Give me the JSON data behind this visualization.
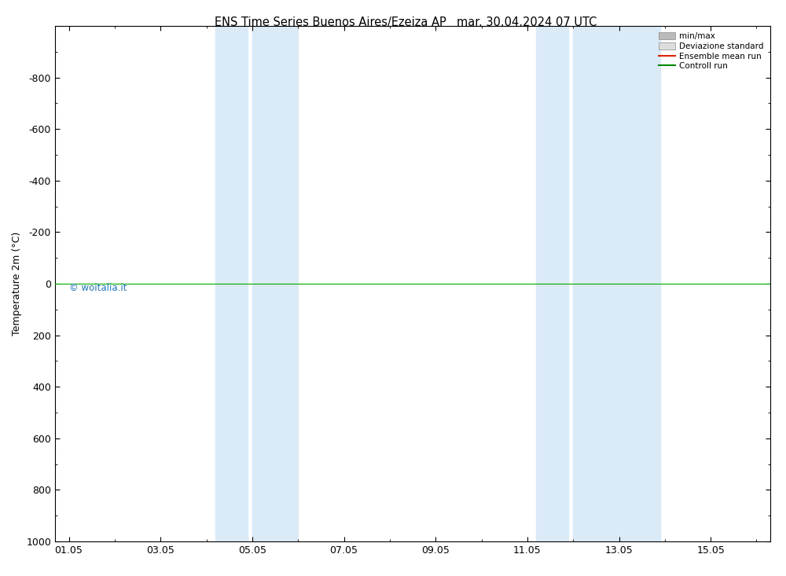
{
  "title_left": "ENS Time Series Buenos Aires/Ezeiza AP",
  "title_right": "mar. 30.04.2024 07 UTC",
  "ylabel": "Temperature 2m (°C)",
  "ylim": [
    -1000,
    1000
  ],
  "yticks": [
    -800,
    -600,
    -400,
    -200,
    0,
    200,
    400,
    600,
    800,
    1000
  ],
  "xtick_labels": [
    "01.05",
    "03.05",
    "05.05",
    "07.05",
    "09.05",
    "11.05",
    "13.05",
    "15.05"
  ],
  "xtick_positions": [
    0,
    2,
    4,
    6,
    8,
    10,
    12,
    14
  ],
  "xlim": [
    -0.3,
    15.3
  ],
  "shaded_bands": [
    {
      "x_start": 3.2,
      "x_end": 3.9
    },
    {
      "x_start": 4.0,
      "x_end": 5.0
    },
    {
      "x_start": 10.2,
      "x_end": 10.9
    },
    {
      "x_start": 11.0,
      "x_end": 12.9
    }
  ],
  "hline_y": 0,
  "hline_color": "#00aa00",
  "bg_color": "#ffffff",
  "shaded_color": "#daeaf7",
  "watermark": "© woitalia.it",
  "watermark_color": "#2277bb",
  "legend_items": [
    {
      "label": "min/max",
      "color": "#bbbbbb",
      "lw": 5,
      "type": "band"
    },
    {
      "label": "Deviazione standard",
      "color": "#dddddd",
      "lw": 5,
      "type": "band"
    },
    {
      "label": "Ensemble mean run",
      "color": "#dd2200",
      "lw": 1.5,
      "type": "line"
    },
    {
      "label": "Controll run",
      "color": "#008800",
      "lw": 1.5,
      "type": "line"
    }
  ],
  "title_fontsize": 10.5,
  "tick_fontsize": 9,
  "ylabel_fontsize": 9,
  "fig_bg_color": "#ffffff"
}
